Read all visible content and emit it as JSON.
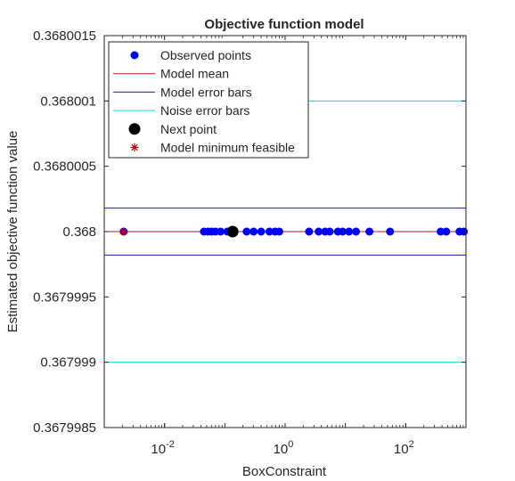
{
  "chart_data": {
    "type": "scatter",
    "title": "Objective function model",
    "xlabel": "BoxConstraint",
    "ylabel": "Estimated objective function value",
    "xscale": "log",
    "xlim": [
      0.001,
      1000
    ],
    "ylim": [
      0.3679985,
      0.3680015
    ],
    "grid": false,
    "legend_position": "top-left",
    "x_ticks": [
      {
        "value": 0.01,
        "base": "10",
        "exp": "-2"
      },
      {
        "value": 1,
        "base": "10",
        "exp": "0"
      },
      {
        "value": 100,
        "base": "10",
        "exp": "2"
      }
    ],
    "y_ticks": [
      {
        "value": 0.3679985,
        "label": "0.3679985"
      },
      {
        "value": 0.367999,
        "label": "0.367999"
      },
      {
        "value": 0.3679995,
        "label": "0.3679995"
      },
      {
        "value": 0.368,
        "label": "0.368"
      },
      {
        "value": 0.3680005,
        "label": "0.3680005"
      },
      {
        "value": 0.368001,
        "label": "0.368001"
      },
      {
        "value": 0.3680015,
        "label": "0.3680015"
      }
    ],
    "series": [
      {
        "name": "Observed points",
        "kind": "points",
        "color": "#0000ff",
        "x": [
          0.0021,
          0.045,
          0.052,
          0.06,
          0.07,
          0.085,
          0.11,
          0.23,
          0.3,
          0.4,
          0.55,
          0.68,
          0.8,
          2.5,
          3.6,
          4.6,
          5.5,
          7.5,
          9.0,
          11.5,
          15.0,
          25.0,
          55.0,
          380.0,
          470.0,
          780.0,
          920.0
        ],
        "y": [
          0.368,
          0.368,
          0.368,
          0.368,
          0.368,
          0.368,
          0.368,
          0.368,
          0.368,
          0.368,
          0.368,
          0.368,
          0.368,
          0.368,
          0.368,
          0.368,
          0.368,
          0.368,
          0.368,
          0.368,
          0.368,
          0.368,
          0.368,
          0.368,
          0.368,
          0.368,
          0.368
        ]
      },
      {
        "name": "Model mean",
        "kind": "hline",
        "color": "#c0101f",
        "y": 0.368
      },
      {
        "name": "Model error bars",
        "kind": "hband",
        "color": "#1e1eb4",
        "y": [
          0.36799982,
          0.36800018
        ]
      },
      {
        "name": "Noise error bars",
        "kind": "hband",
        "color": "#00e5e5",
        "y": [
          0.367999,
          0.368001
        ]
      },
      {
        "name": "Next point",
        "kind": "points",
        "color": "#000000",
        "x": [
          0.135
        ],
        "y": [
          0.368
        ]
      },
      {
        "name": "Model minimum feasible",
        "kind": "star",
        "color": "#c00000",
        "x": [
          0.0021
        ],
        "y": [
          0.368
        ]
      }
    ]
  }
}
